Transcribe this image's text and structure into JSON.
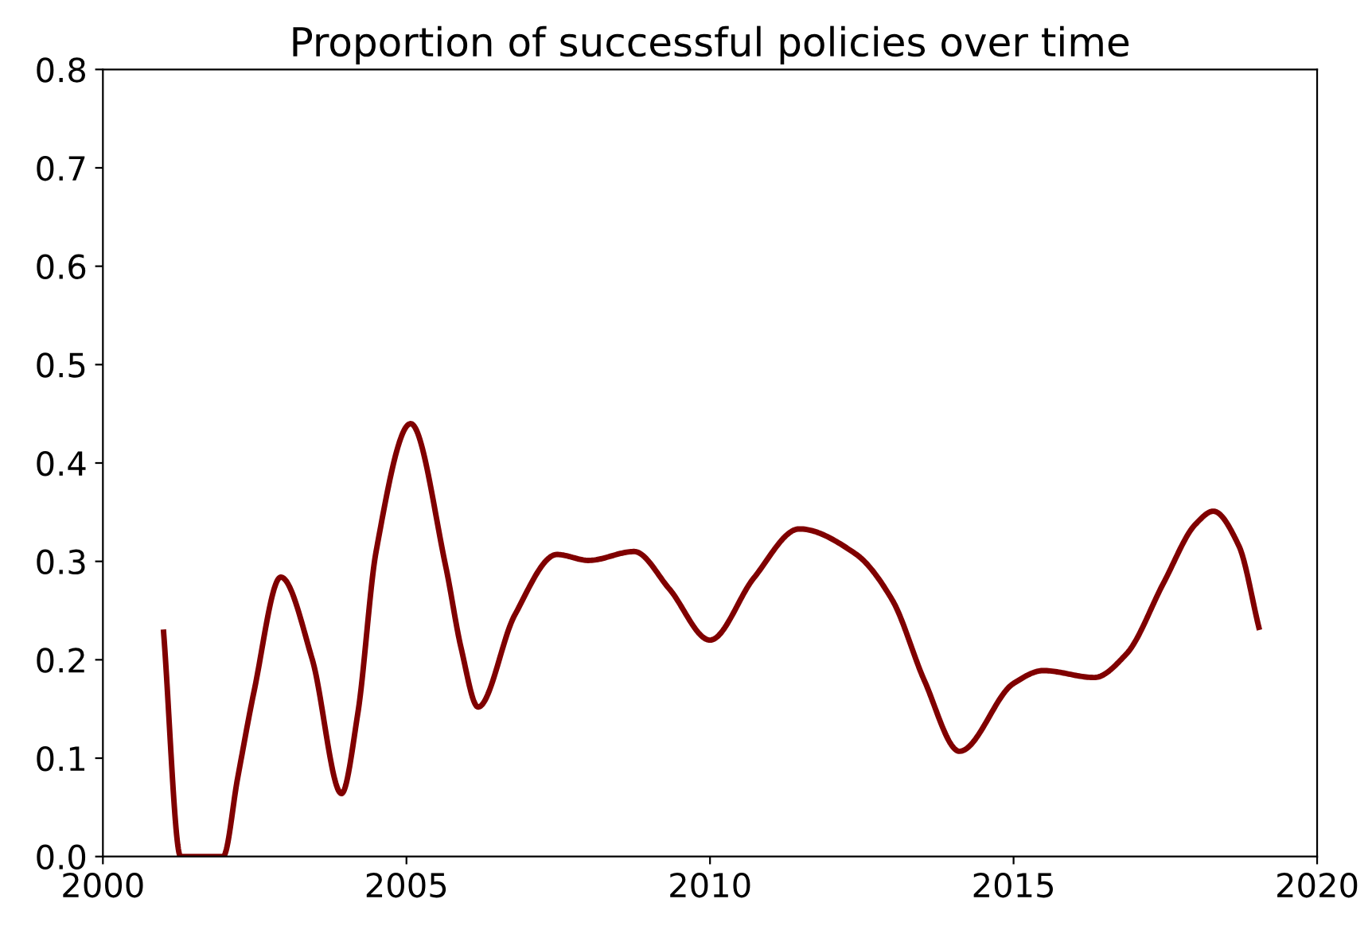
{
  "chart_data": {
    "type": "line",
    "title": "Proportion of successful policies over time",
    "series": [
      {
        "color": "#800000",
        "x": [
          2001.0,
          2001.28,
          2001.98,
          2002.22,
          2002.49,
          2002.93,
          2003.45,
          2003.93,
          2004.2,
          2004.5,
          2005.07,
          2005.65,
          2005.9,
          2006.18,
          2006.78,
          2007.48,
          2008.0,
          2008.75,
          2009.33,
          2010.0,
          2010.72,
          2011.47,
          2012.39,
          2013.0,
          2013.53,
          2014.11,
          2015.0,
          2015.49,
          2016.33,
          2016.86,
          2017.47,
          2018.0,
          2018.29,
          2018.71,
          2019.04
        ],
        "values": [
          0.228,
          0.0,
          0.0,
          0.08,
          0.168,
          0.284,
          0.2,
          0.064,
          0.146,
          0.31,
          0.44,
          0.294,
          0.212,
          0.152,
          0.245,
          0.307,
          0.301,
          0.31,
          0.272,
          0.22,
          0.283,
          0.333,
          0.308,
          0.261,
          0.179,
          0.107,
          0.176,
          0.189,
          0.182,
          0.206,
          0.278,
          0.338,
          0.351,
          0.316,
          0.233
        ]
      }
    ],
    "xlim": [
      2000,
      2020
    ],
    "xticks": [
      2000,
      2005,
      2010,
      2015,
      2020
    ],
    "ylim": [
      0.0,
      0.8
    ],
    "yticks": [
      {
        "value": 0.0,
        "label": "0.0"
      },
      {
        "value": 0.1,
        "label": "0.1"
      },
      {
        "value": 0.2,
        "label": "0.2"
      },
      {
        "value": 0.3,
        "label": "0.3"
      },
      {
        "value": 0.4,
        "label": "0.4"
      },
      {
        "value": 0.5,
        "label": "0.5"
      },
      {
        "value": 0.6,
        "label": "0.6"
      },
      {
        "value": 0.7,
        "label": "0.7"
      },
      {
        "value": 0.8,
        "label": "0.8"
      }
    ],
    "grid": false,
    "legend": false
  }
}
